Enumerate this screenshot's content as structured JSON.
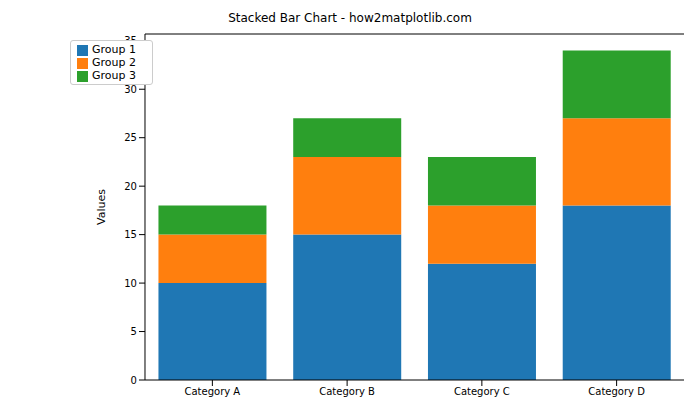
{
  "chart_data": {
    "type": "bar",
    "title": "Stacked Bar Chart - how2matplotlib.com",
    "ylabel": "Values",
    "categories": [
      "Category A",
      "Category B",
      "Category C",
      "Category D"
    ],
    "series": [
      {
        "name": "Group 1",
        "color": "#1f77b4",
        "values": [
          10,
          15,
          12,
          18
        ]
      },
      {
        "name": "Group 2",
        "color": "#ff7f0e",
        "values": [
          5,
          8,
          6,
          9
        ]
      },
      {
        "name": "Group 3",
        "color": "#2ca02c",
        "values": [
          3,
          4,
          5,
          7
        ]
      }
    ],
    "stacked": true,
    "ylim": [
      0,
      35.7
    ],
    "yticks": [
      0,
      5,
      10,
      15,
      20,
      25,
      30,
      35
    ],
    "legend": "upper left",
    "grid": false
  }
}
